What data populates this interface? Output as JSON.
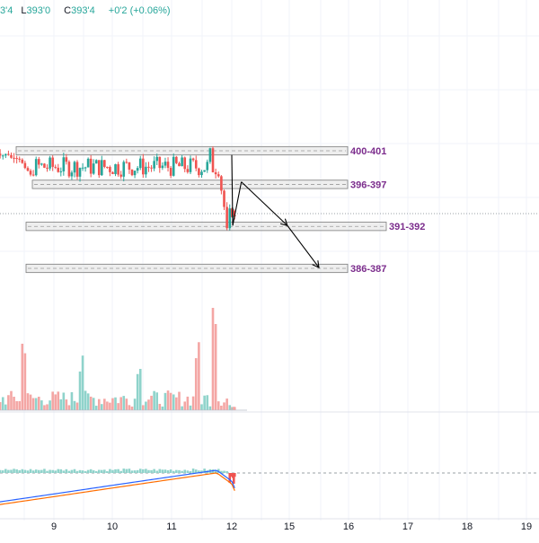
{
  "header": {
    "ohlc": {
      "o_value": "3'4",
      "l_label": "L",
      "l_value": "393'0",
      "c_label": "C",
      "c_value": "393'4",
      "change": "+0'2 (+0.06%)"
    }
  },
  "colors": {
    "up": "#26a69a",
    "down": "#ef5350",
    "up_vol": "#8fd3cb",
    "down_vol": "#f4a6a4",
    "zone_fill": "#e0e0e0",
    "zone_border": "#7b7b7b",
    "zone_label": "#7b2c8c",
    "macd": "#2962ff",
    "signal": "#ff6d00",
    "grid": "#f0f3fa"
  },
  "chart_data": {
    "type": "candlestick",
    "x_axis": {
      "tick_labels": [
        "9",
        "10",
        "11",
        "12",
        "15",
        "16",
        "17",
        "18",
        "19"
      ]
    },
    "zones": [
      {
        "label": "400-401",
        "low": 400,
        "high": 401
      },
      {
        "label": "396-397",
        "low": 396,
        "high": 397
      },
      {
        "label": "391-392",
        "low": 391,
        "high": 392
      },
      {
        "label": "386-387",
        "low": 386,
        "high": 387
      }
    ],
    "projection": [
      [
        12.0,
        400.0
      ],
      [
        12.05,
        391.6
      ],
      [
        12.5,
        396.8
      ],
      [
        14.9,
        391.6
      ],
      [
        15.5,
        386.6
      ]
    ],
    "price_range": [
      384,
      405
    ]
  }
}
